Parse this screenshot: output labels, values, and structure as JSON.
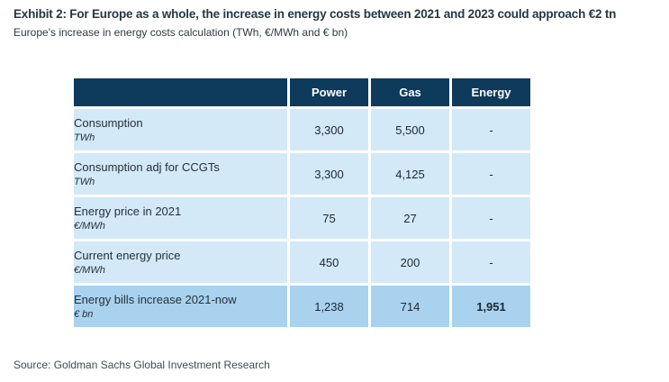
{
  "header": {
    "title": "Exhibit 2: For Europe as a whole, the increase in energy costs between 2021 and 2023 could approach €2 tn",
    "subtitle": "Europe's increase in energy costs calculation (TWh, €/MWh and € bn)"
  },
  "footer": {
    "source": "Source: Goldman Sachs Global Investment Research"
  },
  "colors": {
    "header_bg": "#0e3a5c",
    "header_text": "#ffffff",
    "row_bg": "#d3e9f8",
    "total_row_bg": "#a8d2ee",
    "title_text": "#253746",
    "body_text": "#25303a"
  },
  "chart_data": {
    "type": "table",
    "title": "Europe's increase in energy costs calculation (TWh, €/MWh and € bn)",
    "columns": [
      "",
      "Power",
      "Gas",
      "Energy"
    ],
    "rows": [
      {
        "label": "Consumption",
        "unit": "TWh",
        "power": "3,300",
        "gas": "5,500",
        "energy": "-"
      },
      {
        "label": "Consumption adj for CCGTs",
        "unit": "TWh",
        "power": "3,300",
        "gas": "4,125",
        "energy": "-"
      },
      {
        "label": "Energy price in 2021",
        "unit": "€/MWh",
        "power": "75",
        "gas": "27",
        "energy": "-"
      },
      {
        "label": "Current energy price",
        "unit": "€/MWh",
        "power": "450",
        "gas": "200",
        "energy": "-"
      },
      {
        "label": "Energy bills increase 2021-now",
        "unit": "€ bn",
        "power": "1,238",
        "gas": "714",
        "energy": "1,951",
        "highlight": true
      }
    ]
  }
}
